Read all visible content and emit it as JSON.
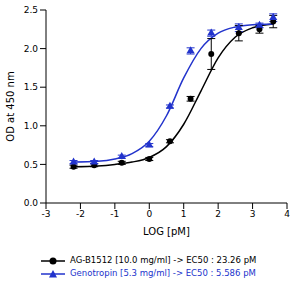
{
  "chart_data": {
    "type": "scatter",
    "x_label": "LOG [pM]",
    "y_label": "OD at 450 nm",
    "xlim": [
      -3,
      4
    ],
    "xticks": [
      -3,
      -2,
      -1,
      0,
      1,
      2,
      3,
      4
    ],
    "ylim": [
      0,
      2.5
    ],
    "yticks": [
      {
        "value": 0,
        "label": "0.0"
      },
      {
        "value": 0.5,
        "label": "0.5"
      },
      {
        "value": 1,
        "label": "1.0"
      },
      {
        "value": 1.5,
        "label": "1.5"
      },
      {
        "value": 2,
        "label": "2.0"
      },
      {
        "value": 2.5,
        "label": "2.5"
      }
    ],
    "legend": "bottom",
    "x": [
      -2.2,
      -1.6,
      -0.8,
      0,
      0.6,
      1.2,
      1.8,
      2.6,
      3.2,
      3.6
    ],
    "curve_x": [
      -2.2,
      -1.5,
      -1,
      -0.5,
      0,
      0.5,
      1,
      1.5,
      2,
      2.5,
      3,
      3.6
    ],
    "series": [
      {
        "name": "AG-B1512 [10.0 mg/ml] -> EC50 : 23.26 pM",
        "color": "#000000",
        "marker": "circle",
        "values": [
          0.47,
          0.49,
          0.52,
          0.57,
          0.8,
          1.35,
          1.93,
          2.2,
          2.25,
          2.35
        ],
        "errors": [
          0.02,
          0.02,
          0.02,
          0.02,
          0.02,
          0.03,
          0.2,
          0.1,
          0.05,
          0.08
        ],
        "curve_values": [
          0.47,
          0.48,
          0.5,
          0.53,
          0.59,
          0.73,
          1.02,
          1.45,
          1.88,
          2.15,
          2.27,
          2.32
        ]
      },
      {
        "name": "Genotropin [5.3 mg/ml] -> EC50 : 5.586 pM",
        "color": "#2233cc",
        "marker": "triangle",
        "values": [
          0.53,
          0.53,
          0.6,
          0.75,
          1.25,
          1.97,
          2.2,
          2.27,
          2.3,
          2.4
        ],
        "errors": [
          0.02,
          0.02,
          0.02,
          0.02,
          0.02,
          0.04,
          0.04,
          0.05,
          0.03,
          0.05
        ],
        "curve_values": [
          0.53,
          0.54,
          0.57,
          0.64,
          0.8,
          1.13,
          1.62,
          2.0,
          2.2,
          2.28,
          2.31,
          2.32
        ]
      }
    ]
  }
}
